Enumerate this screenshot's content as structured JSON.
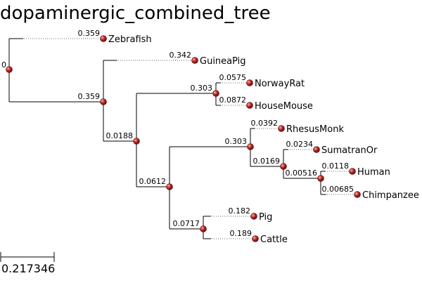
{
  "title": "dopaminergic_combined_tree",
  "root_label": "0",
  "scale_bar_label": "0.217346",
  "colors": {
    "node": "#b22222",
    "node_highlight": "#f2b0a8",
    "line": "#000000"
  },
  "nodes": [
    {
      "id": "root",
      "parent": null,
      "length": "0"
    },
    {
      "id": "zebrafish",
      "parent": "root",
      "length": "0.359",
      "label": "Zebrafish"
    },
    {
      "id": "n1",
      "parent": "root",
      "length": "0.359"
    },
    {
      "id": "guineapig",
      "parent": "n1",
      "length": "0.342",
      "label": "GuineaPig"
    },
    {
      "id": "n2",
      "parent": "n1",
      "length": "0.0188"
    },
    {
      "id": "n3",
      "parent": "n2",
      "length": "0.303"
    },
    {
      "id": "norwayrat",
      "parent": "n3",
      "length": "0.0575",
      "label": "NorwayRat"
    },
    {
      "id": "housemouse",
      "parent": "n3",
      "length": "0.0872",
      "label": "HouseMouse"
    },
    {
      "id": "n4",
      "parent": "n2",
      "length": "0.0612"
    },
    {
      "id": "n5",
      "parent": "n4",
      "length": "0.303"
    },
    {
      "id": "rhesusmonk",
      "parent": "n5",
      "length": "0.0392",
      "label": "RhesusMonk"
    },
    {
      "id": "n6",
      "parent": "n5",
      "length": "0.0169"
    },
    {
      "id": "sumatranor",
      "parent": "n6",
      "length": "0.0234",
      "label": "SumatranOr"
    },
    {
      "id": "n7",
      "parent": "n6",
      "length": "0.00516"
    },
    {
      "id": "human",
      "parent": "n7",
      "length": "0.0118",
      "label": "Human"
    },
    {
      "id": "chimpanzee",
      "parent": "n7",
      "length": "0.00685",
      "label": "Chimpanzee"
    },
    {
      "id": "n8",
      "parent": "n4",
      "length": "0.0717"
    },
    {
      "id": "pig",
      "parent": "n8",
      "length": "0.182",
      "label": "Pig"
    },
    {
      "id": "cattle",
      "parent": "n8",
      "length": "0.189",
      "label": "Cattle"
    }
  ]
}
